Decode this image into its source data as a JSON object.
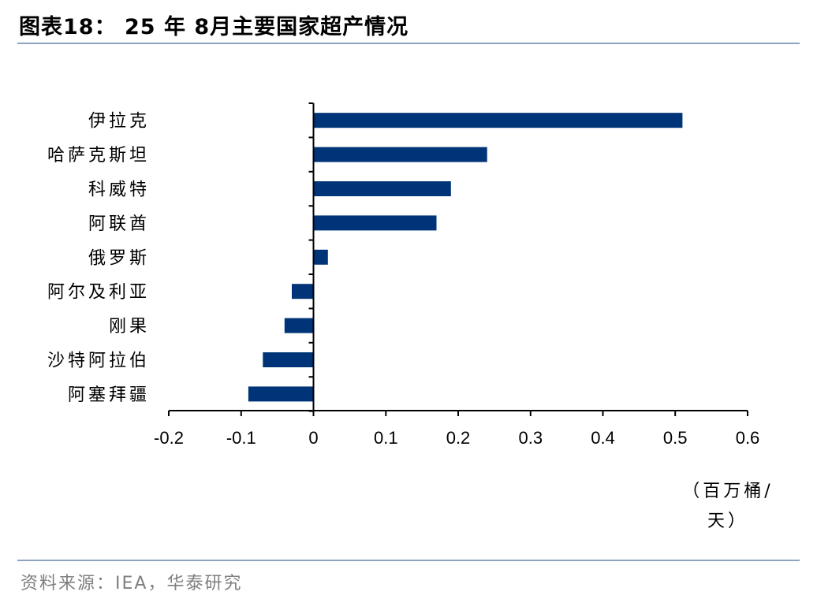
{
  "title": "图表18： 25 年 8月主要国家超产情况",
  "source": "资料来源：IEA，华泰研究",
  "unit": "（百万桶/\n天）",
  "colors": {
    "bar": "#003478",
    "axis": "#000000",
    "rule": "#8ea2c4"
  },
  "chart_data": {
    "type": "bar",
    "orientation": "horizontal",
    "categories": [
      "伊拉克",
      "哈萨克斯坦",
      "科威特",
      "阿联酋",
      "俄罗斯",
      "阿尔及利亚",
      "刚果",
      "沙特阿拉伯",
      "阿塞拜疆"
    ],
    "values": [
      0.51,
      0.24,
      0.19,
      0.17,
      0.02,
      -0.03,
      -0.04,
      -0.07,
      -0.09
    ],
    "xlim": [
      -0.2,
      0.6
    ],
    "xticks": [
      "-0.2",
      "-0.1",
      "0",
      "0.1",
      "0.2",
      "0.3",
      "0.4",
      "0.5",
      "0.6"
    ],
    "xlabel": "（百万桶/天）",
    "ylabel": "",
    "legend": "none",
    "grid": false
  }
}
